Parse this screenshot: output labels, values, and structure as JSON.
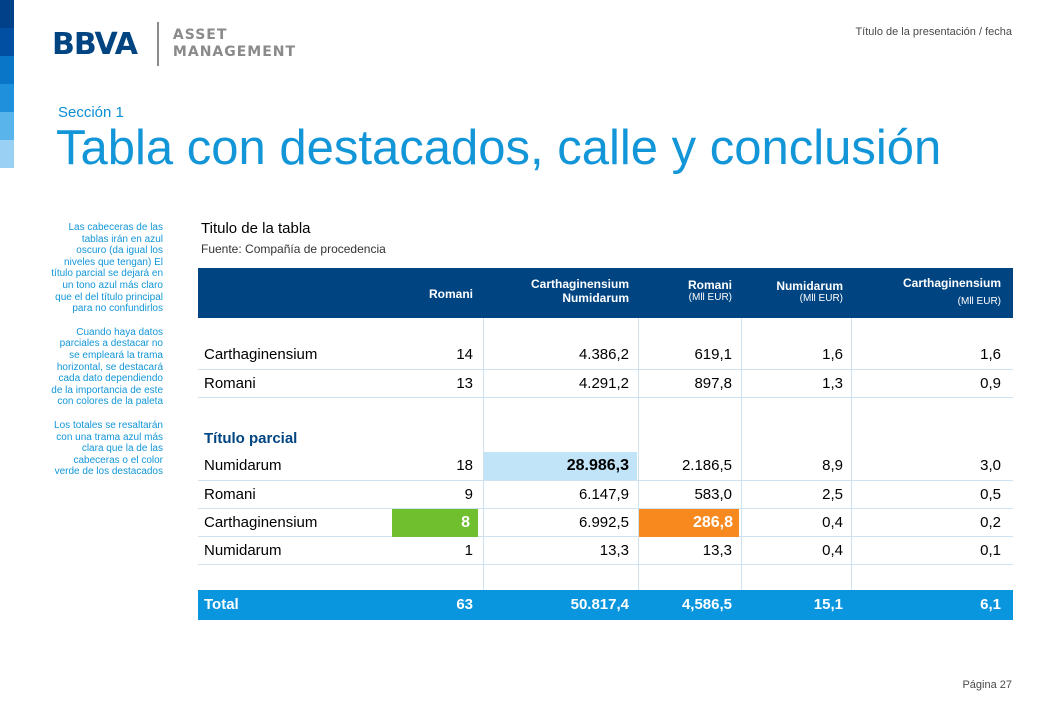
{
  "header": {
    "logo_text": "BBVA",
    "logo_sub_line1": "ASSET",
    "logo_sub_line2": "MANAGEMENT",
    "presentation_title": "Título de la presentación / fecha"
  },
  "section_label": "Sección 1",
  "title": "Tabla con destacados, calle y conclusión",
  "side_notes": [
    "Las cabeceras de las tablas irán en azul oscuro (da igual los niveles que tengan) El título parcial se dejará en un tono azul más claro que el del título principal para no confundirlos",
    "Cuando haya datos parciales a destacar no se empleará la trama horizontal, se destacará cada dato dependiendo de la importancia de este con colores de la paleta",
    "Los totales se resaltarán con una trama azul más clara que la de las cabeceras o el color verde de los destacados"
  ],
  "table": {
    "title": "Titulo de la tabla",
    "source": "Fuente: Compañía de procedencia",
    "headers": [
      {
        "line1": "Romani",
        "line2": "",
        "sub": ""
      },
      {
        "line1": "Carthaginensium",
        "line2": "Numidarum",
        "sub": ""
      },
      {
        "line1": "Romani",
        "line2": "",
        "sub": "(Mll EUR)"
      },
      {
        "line1": "Numidarum",
        "line2": "",
        "sub": "(Mll EUR)"
      },
      {
        "line1": "Carthaginensium",
        "line2": "",
        "sub": "(Mll EUR)"
      }
    ],
    "rows_top": [
      {
        "name": "Carthaginensium",
        "c1": "14",
        "c2": "4.386,2",
        "c3": "619,1",
        "c4": "1,6",
        "c5": "1,6"
      },
      {
        "name": "Romani",
        "c1": "13",
        "c2": "4.291,2",
        "c3": "897,8",
        "c4": "1,3",
        "c5": "0,9"
      }
    ],
    "partial_title": "Título parcial",
    "rows_partial": [
      {
        "name": "Numidarum",
        "c1": "18",
        "c2": "28.986,3",
        "c3": "2.186,5",
        "c4": "8,9",
        "c5": "3,0"
      },
      {
        "name": "Romani",
        "c1": "9",
        "c2": "6.147,9",
        "c3": "583,0",
        "c4": "2,5",
        "c5": "0,5"
      },
      {
        "name": "Carthaginensium",
        "c1": "8",
        "c2": "6.992,5",
        "c3": "286,8",
        "c4": "0,4",
        "c5": "0,2"
      },
      {
        "name": "Numidarum",
        "c1": "1",
        "c2": "13,3",
        "c3": "13,3",
        "c4": "0,4",
        "c5": "0,1"
      }
    ],
    "total": {
      "name": "Total",
      "c1": "63",
      "c2": "50.817,4",
      "c3": "4,586,5",
      "c4": "15,1",
      "c5": "6,1"
    }
  },
  "footer": {
    "page": "Página 27"
  },
  "colors": {
    "header_dark_blue": "#004481",
    "title_blue": "#1296d8",
    "highlight_light_blue": "#c2e4f8",
    "highlight_green": "#6fbf2e",
    "highlight_orange": "#f7891f",
    "total_blue": "#0a96de"
  }
}
